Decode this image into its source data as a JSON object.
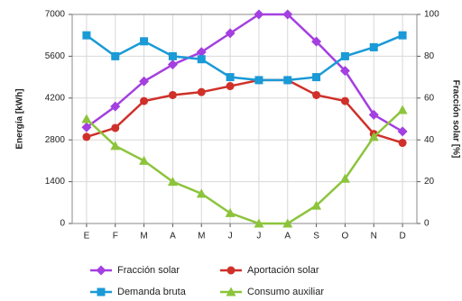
{
  "chart_data": {
    "type": "line",
    "categories": [
      "E",
      "F",
      "M",
      "A",
      "M",
      "J",
      "J",
      "A",
      "S",
      "O",
      "N",
      "D"
    ],
    "y_label": "Energía [kWh]",
    "y2_label": "Fracción solar [%]",
    "ylim": [
      0,
      7000
    ],
    "yticks": [
      0,
      1400,
      2800,
      4200,
      5600,
      7000
    ],
    "y2lim": [
      0,
      100
    ],
    "y2ticks": [
      0,
      20,
      40,
      60,
      80,
      100
    ],
    "grid": true,
    "legend": "bottom",
    "series": [
      {
        "name": "Fracción solar",
        "color": "#a43fe0",
        "marker": "diamond",
        "axis": "y2",
        "values": [
          46,
          56,
          68,
          76,
          82,
          91,
          100,
          100,
          87,
          73,
          52,
          44
        ]
      },
      {
        "name": "Aportación solar",
        "color": "#d0302a",
        "marker": "circle",
        "values": [
          2900,
          3200,
          4100,
          4300,
          4400,
          4600,
          4800,
          4800,
          4300,
          4100,
          3000,
          2700
        ]
      },
      {
        "name": "Demanda bruta",
        "color": "#1a9ad6",
        "marker": "square",
        "values": [
          6300,
          5600,
          6100,
          5600,
          5500,
          4900,
          4800,
          4800,
          4900,
          5600,
          5900,
          6300
        ]
      },
      {
        "name": "Consumo auxiliar",
        "color": "#8cc43c",
        "marker": "triangle",
        "values": [
          3500,
          2600,
          2100,
          1400,
          1000,
          350,
          0,
          0,
          600,
          1500,
          2900,
          3800
        ]
      }
    ]
  }
}
